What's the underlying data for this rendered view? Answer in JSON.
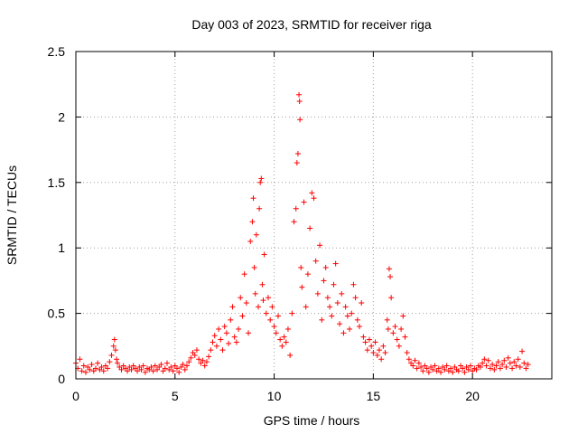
{
  "chart_data": {
    "type": "scatter",
    "title": "Day 003 of 2023, SRMTID for receiver riga",
    "xlabel": "GPS time / hours",
    "ylabel": "SRMTID / TECUs",
    "xlim": [
      0,
      24
    ],
    "ylim": [
      0,
      2.5
    ],
    "grid": true,
    "marker": "+",
    "color": "#ff0000",
    "x_ticks": [
      0,
      5,
      10,
      15,
      20
    ],
    "y_ticks": [
      0,
      0.5,
      1,
      1.5,
      2,
      2.5
    ],
    "x_tick_labels": [
      "0",
      "5",
      "10",
      "15",
      "20"
    ],
    "y_tick_labels": [
      "0",
      "0.5",
      "1",
      "1.5",
      "2",
      "2.5"
    ],
    "series": [
      {
        "name": "SRMTID",
        "points": [
          [
            0.0,
            0.12
          ],
          [
            0.1,
            0.08
          ],
          [
            0.2,
            0.15
          ],
          [
            0.3,
            0.06
          ],
          [
            0.4,
            0.1
          ],
          [
            0.5,
            0.05
          ],
          [
            0.6,
            0.09
          ],
          [
            0.7,
            0.07
          ],
          [
            0.8,
            0.11
          ],
          [
            0.9,
            0.06
          ],
          [
            1.0,
            0.08
          ],
          [
            1.1,
            0.12
          ],
          [
            1.2,
            0.07
          ],
          [
            1.3,
            0.09
          ],
          [
            1.4,
            0.06
          ],
          [
            1.5,
            0.1
          ],
          [
            1.6,
            0.08
          ],
          [
            1.7,
            0.13
          ],
          [
            1.8,
            0.18
          ],
          [
            1.9,
            0.25
          ],
          [
            1.95,
            0.3
          ],
          [
            2.0,
            0.22
          ],
          [
            2.05,
            0.15
          ],
          [
            2.1,
            0.12
          ],
          [
            2.2,
            0.09
          ],
          [
            2.3,
            0.07
          ],
          [
            2.4,
            0.1
          ],
          [
            2.5,
            0.08
          ],
          [
            2.6,
            0.06
          ],
          [
            2.7,
            0.09
          ],
          [
            2.8,
            0.07
          ],
          [
            2.9,
            0.1
          ],
          [
            3.0,
            0.08
          ],
          [
            3.1,
            0.06
          ],
          [
            3.2,
            0.09
          ],
          [
            3.3,
            0.07
          ],
          [
            3.4,
            0.1
          ],
          [
            3.5,
            0.05
          ],
          [
            3.6,
            0.08
          ],
          [
            3.7,
            0.07
          ],
          [
            3.8,
            0.09
          ],
          [
            3.9,
            0.06
          ],
          [
            4.0,
            0.1
          ],
          [
            4.1,
            0.07
          ],
          [
            4.2,
            0.09
          ],
          [
            4.3,
            0.11
          ],
          [
            4.4,
            0.06
          ],
          [
            4.5,
            0.08
          ],
          [
            4.6,
            0.12
          ],
          [
            4.7,
            0.07
          ],
          [
            4.8,
            0.09
          ],
          [
            4.9,
            0.06
          ],
          [
            5.0,
            0.1
          ],
          [
            5.1,
            0.08
          ],
          [
            5.2,
            0.05
          ],
          [
            5.3,
            0.09
          ],
          [
            5.4,
            0.11
          ],
          [
            5.5,
            0.07
          ],
          [
            5.6,
            0.1
          ],
          [
            5.7,
            0.13
          ],
          [
            5.8,
            0.16
          ],
          [
            5.9,
            0.2
          ],
          [
            6.0,
            0.18
          ],
          [
            6.1,
            0.22
          ],
          [
            6.2,
            0.15
          ],
          [
            6.3,
            0.12
          ],
          [
            6.4,
            0.14
          ],
          [
            6.5,
            0.1
          ],
          [
            6.6,
            0.13
          ],
          [
            6.7,
            0.17
          ],
          [
            6.8,
            0.22
          ],
          [
            6.9,
            0.28
          ],
          [
            7.0,
            0.33
          ],
          [
            7.1,
            0.25
          ],
          [
            7.2,
            0.38
          ],
          [
            7.3,
            0.3
          ],
          [
            7.4,
            0.22
          ],
          [
            7.5,
            0.4
          ],
          [
            7.6,
            0.35
          ],
          [
            7.7,
            0.27
          ],
          [
            7.8,
            0.45
          ],
          [
            7.9,
            0.55
          ],
          [
            8.0,
            0.32
          ],
          [
            8.1,
            0.28
          ],
          [
            8.2,
            0.38
          ],
          [
            8.3,
            0.62
          ],
          [
            8.4,
            0.48
          ],
          [
            8.5,
            0.8
          ],
          [
            8.6,
            0.58
          ],
          [
            8.7,
            0.35
          ],
          [
            8.8,
            1.05
          ],
          [
            8.9,
            1.2
          ],
          [
            8.95,
            1.38
          ],
          [
            9.0,
            0.85
          ],
          [
            9.05,
            0.65
          ],
          [
            9.1,
            1.1
          ],
          [
            9.2,
            0.55
          ],
          [
            9.25,
            1.3
          ],
          [
            9.3,
            1.5
          ],
          [
            9.35,
            1.53
          ],
          [
            9.4,
            0.72
          ],
          [
            9.45,
            0.6
          ],
          [
            9.5,
            0.95
          ],
          [
            9.6,
            0.5
          ],
          [
            9.7,
            0.62
          ],
          [
            9.8,
            0.45
          ],
          [
            9.9,
            0.55
          ],
          [
            10.0,
            0.4
          ],
          [
            10.1,
            0.35
          ],
          [
            10.2,
            0.48
          ],
          [
            10.3,
            0.3
          ],
          [
            10.4,
            0.25
          ],
          [
            10.5,
            0.32
          ],
          [
            10.6,
            0.28
          ],
          [
            10.7,
            0.38
          ],
          [
            10.8,
            0.18
          ],
          [
            10.9,
            0.5
          ],
          [
            11.0,
            1.2
          ],
          [
            11.1,
            1.3
          ],
          [
            11.15,
            1.65
          ],
          [
            11.2,
            1.72
          ],
          [
            11.25,
            2.17
          ],
          [
            11.28,
            2.12
          ],
          [
            11.3,
            1.98
          ],
          [
            11.35,
            0.85
          ],
          [
            11.4,
            0.7
          ],
          [
            11.5,
            1.35
          ],
          [
            11.6,
            0.55
          ],
          [
            11.7,
            0.8
          ],
          [
            11.8,
            1.15
          ],
          [
            11.9,
            1.42
          ],
          [
            12.0,
            1.38
          ],
          [
            12.1,
            0.9
          ],
          [
            12.2,
            0.65
          ],
          [
            12.3,
            1.02
          ],
          [
            12.4,
            0.45
          ],
          [
            12.5,
            0.75
          ],
          [
            12.6,
            0.85
          ],
          [
            12.7,
            0.62
          ],
          [
            12.8,
            0.55
          ],
          [
            12.9,
            0.48
          ],
          [
            13.0,
            0.72
          ],
          [
            13.1,
            0.88
          ],
          [
            13.2,
            0.58
          ],
          [
            13.3,
            0.42
          ],
          [
            13.4,
            0.65
          ],
          [
            13.5,
            0.35
          ],
          [
            13.6,
            0.55
          ],
          [
            13.7,
            0.48
          ],
          [
            13.8,
            0.38
          ],
          [
            13.9,
            0.5
          ],
          [
            14.0,
            0.72
          ],
          [
            14.1,
            0.62
          ],
          [
            14.2,
            0.45
          ],
          [
            14.3,
            0.4
          ],
          [
            14.4,
            0.58
          ],
          [
            14.5,
            0.32
          ],
          [
            14.6,
            0.28
          ],
          [
            14.7,
            0.22
          ],
          [
            14.8,
            0.3
          ],
          [
            14.9,
            0.25
          ],
          [
            15.0,
            0.2
          ],
          [
            15.1,
            0.28
          ],
          [
            15.2,
            0.18
          ],
          [
            15.3,
            0.22
          ],
          [
            15.4,
            0.15
          ],
          [
            15.5,
            0.25
          ],
          [
            15.6,
            0.2
          ],
          [
            15.7,
            0.45
          ],
          [
            15.75,
            0.38
          ],
          [
            15.8,
            0.84
          ],
          [
            15.85,
            0.78
          ],
          [
            15.9,
            0.62
          ],
          [
            16.0,
            0.35
          ],
          [
            16.1,
            0.4
          ],
          [
            16.2,
            0.3
          ],
          [
            16.3,
            0.25
          ],
          [
            16.4,
            0.38
          ],
          [
            16.5,
            0.48
          ],
          [
            16.6,
            0.32
          ],
          [
            16.7,
            0.2
          ],
          [
            16.8,
            0.15
          ],
          [
            16.9,
            0.12
          ],
          [
            17.0,
            0.1
          ],
          [
            17.1,
            0.14
          ],
          [
            17.2,
            0.08
          ],
          [
            17.3,
            0.12
          ],
          [
            17.4,
            0.09
          ],
          [
            17.5,
            0.06
          ],
          [
            17.6,
            0.1
          ],
          [
            17.7,
            0.08
          ],
          [
            17.8,
            0.05
          ],
          [
            17.9,
            0.09
          ],
          [
            18.0,
            0.07
          ],
          [
            18.1,
            0.1
          ],
          [
            18.2,
            0.06
          ],
          [
            18.3,
            0.08
          ],
          [
            18.4,
            0.05
          ],
          [
            18.5,
            0.09
          ],
          [
            18.6,
            0.07
          ],
          [
            18.7,
            0.1
          ],
          [
            18.8,
            0.06
          ],
          [
            18.9,
            0.08
          ],
          [
            19.0,
            0.05
          ],
          [
            19.1,
            0.09
          ],
          [
            19.2,
            0.07
          ],
          [
            19.3,
            0.06
          ],
          [
            19.4,
            0.1
          ],
          [
            19.5,
            0.08
          ],
          [
            19.6,
            0.05
          ],
          [
            19.7,
            0.09
          ],
          [
            19.8,
            0.07
          ],
          [
            19.9,
            0.1
          ],
          [
            20.0,
            0.06
          ],
          [
            20.1,
            0.08
          ],
          [
            20.2,
            0.07
          ],
          [
            20.3,
            0.1
          ],
          [
            20.4,
            0.09
          ],
          [
            20.5,
            0.12
          ],
          [
            20.6,
            0.15
          ],
          [
            20.7,
            0.1
          ],
          [
            20.8,
            0.14
          ],
          [
            20.9,
            0.08
          ],
          [
            21.0,
            0.11
          ],
          [
            21.1,
            0.07
          ],
          [
            21.2,
            0.1
          ],
          [
            21.3,
            0.13
          ],
          [
            21.4,
            0.08
          ],
          [
            21.5,
            0.11
          ],
          [
            21.6,
            0.14
          ],
          [
            21.7,
            0.09
          ],
          [
            21.8,
            0.16
          ],
          [
            21.9,
            0.12
          ],
          [
            22.0,
            0.08
          ],
          [
            22.1,
            0.13
          ],
          [
            22.2,
            0.1
          ],
          [
            22.3,
            0.15
          ],
          [
            22.4,
            0.09
          ],
          [
            22.5,
            0.21
          ],
          [
            22.6,
            0.12
          ],
          [
            22.7,
            0.08
          ],
          [
            22.8,
            0.11
          ]
        ]
      }
    ]
  }
}
